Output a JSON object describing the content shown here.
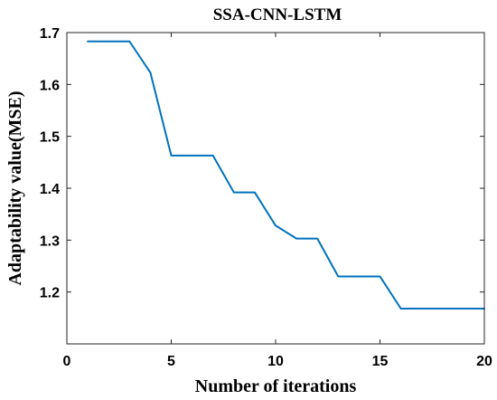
{
  "chart_data": {
    "type": "line",
    "title": "SSA-CNN-LSTM",
    "xlabel": "Number of iterations",
    "ylabel": "Adaptability value(MSE)",
    "xlim": [
      0,
      20
    ],
    "ylim": [
      1.1,
      1.7
    ],
    "xticks": [
      0,
      5,
      10,
      15,
      20
    ],
    "yticks": [
      1.2,
      1.3,
      1.4,
      1.5,
      1.6,
      1.7
    ],
    "xtick_labels": [
      "0",
      "5",
      "10",
      "15",
      "20"
    ],
    "ytick_labels": [
      "1.2",
      "1.3",
      "1.4",
      "1.5",
      "1.6",
      "1.7"
    ],
    "grid": false,
    "series": [
      {
        "color": "#0072bd",
        "x": [
          1,
          2,
          3,
          4,
          5,
          6,
          7,
          8,
          9,
          10,
          11,
          12,
          13,
          14,
          15,
          16,
          17,
          18,
          19,
          20
        ],
        "y": [
          1.683,
          1.683,
          1.683,
          1.623,
          1.463,
          1.463,
          1.463,
          1.392,
          1.392,
          1.328,
          1.303,
          1.303,
          1.23,
          1.23,
          1.23,
          1.168,
          1.168,
          1.168,
          1.168,
          1.168
        ]
      }
    ]
  }
}
